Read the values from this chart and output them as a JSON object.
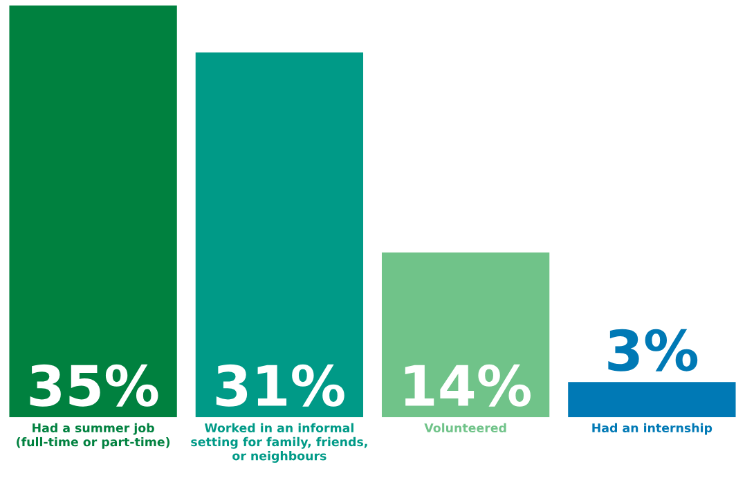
{
  "chart_data": {
    "type": "bar",
    "categories": [
      "Had a summer job\n(full-time or part-time)",
      "Worked in an informal\nsetting for family, friends,\nor neighbours",
      "Volunteered",
      "Had an internship"
    ],
    "values": [
      35,
      31,
      14,
      3
    ],
    "colors": [
      "#00813f",
      "#009a87",
      "#70c389",
      "#0079b5"
    ],
    "value_labels": [
      "35%",
      "31%",
      "14%",
      "3%"
    ]
  }
}
